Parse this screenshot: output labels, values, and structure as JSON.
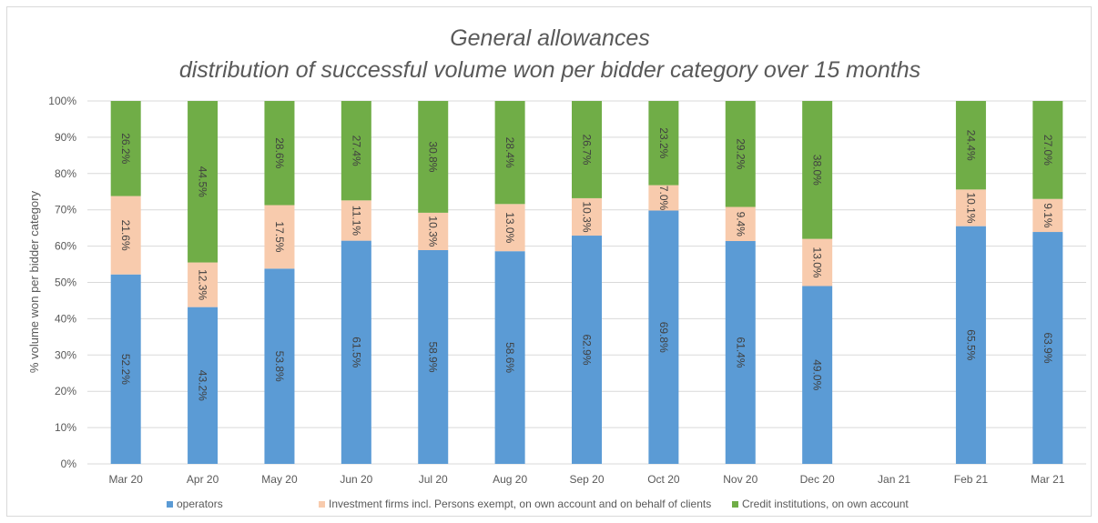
{
  "chart_data": {
    "type": "bar",
    "stacked": true,
    "title": "General allowances",
    "subtitle": "distribution of successful volume won per bidder category over 15 months",
    "ylabel": "% volume won per bidder category",
    "xlabel": "",
    "ylim": [
      0,
      100
    ],
    "yticks": [
      "0%",
      "10%",
      "20%",
      "30%",
      "40%",
      "50%",
      "60%",
      "70%",
      "80%",
      "90%",
      "100%"
    ],
    "grid": true,
    "legend_position": "bottom",
    "categories": [
      "Mar 20",
      "Apr 20",
      "May 20",
      "Jun 20",
      "Jul 20",
      "Aug 20",
      "Sep 20",
      "Oct 20",
      "Nov 20",
      "Dec 20",
      "Jan 21",
      "Feb 21",
      "Mar 21"
    ],
    "series": [
      {
        "name": "operators",
        "color": "#5b9bd5",
        "values": [
          52.2,
          43.2,
          53.8,
          61.5,
          58.9,
          58.6,
          62.9,
          69.8,
          61.4,
          49.0,
          null,
          65.5,
          63.9
        ],
        "labels": [
          "52.2%",
          "43.2%",
          "53.8%",
          "61.5%",
          "58.9%",
          "58.6%",
          "62.9%",
          "69.8%",
          "61.4%",
          "49.0%",
          "",
          "65.5%",
          "63.9%"
        ]
      },
      {
        "name": "Investment firms incl. Persons exempt, on own account and on behalf of clients",
        "color": "#f8cbad",
        "values": [
          21.6,
          12.3,
          17.5,
          11.1,
          10.3,
          13.0,
          10.3,
          7.0,
          9.4,
          13.0,
          null,
          10.1,
          9.1
        ],
        "labels": [
          "21.6%",
          "12.3%",
          "17.5%",
          "11.1%",
          "10.3%",
          "13.0%",
          "10.3%",
          "7.0%",
          "9.4%",
          "13.0%",
          "",
          "10.1%",
          "9.1%"
        ]
      },
      {
        "name": "Credit institutions, on own account",
        "color": "#70ad47",
        "values": [
          26.2,
          44.5,
          28.6,
          27.4,
          30.8,
          28.4,
          26.7,
          23.2,
          29.2,
          38.0,
          null,
          24.4,
          27.0
        ],
        "labels": [
          "26.2%",
          "44.5%",
          "28.6%",
          "27.4%",
          "30.8%",
          "28.4%",
          "26.7%",
          "23.2%",
          "29.2%",
          "38.0%",
          "",
          "24.4%",
          "27.0%"
        ]
      }
    ]
  }
}
